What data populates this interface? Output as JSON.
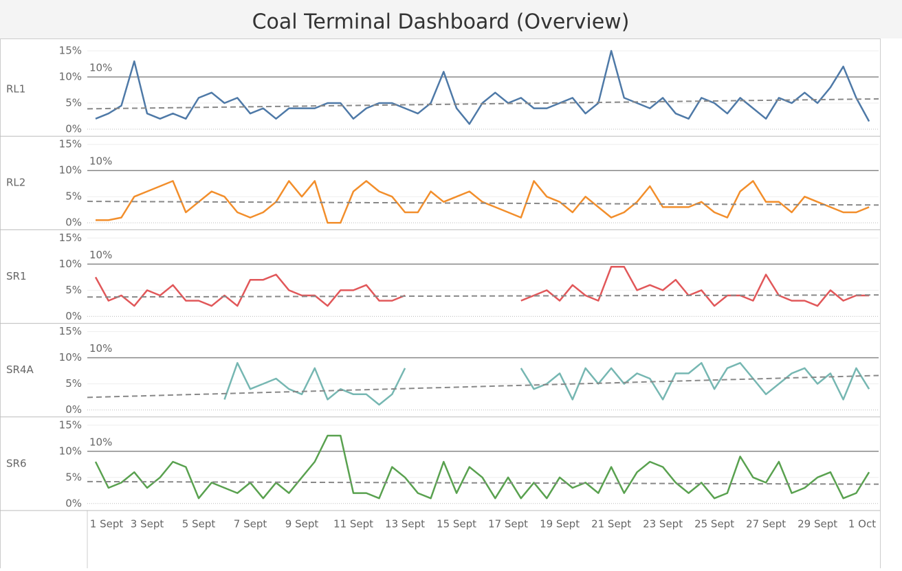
{
  "chart_data": {
    "type": "line",
    "title": "Coal Terminal Dashboard (Overview)",
    "x": [
      1,
      1.5,
      2,
      2.5,
      3,
      3.5,
      4,
      4.5,
      5,
      5.5,
      6,
      6.5,
      7,
      7.5,
      8,
      8.5,
      9,
      9.5,
      10,
      10.5,
      11,
      11.5,
      12,
      12.5,
      13,
      13.5,
      14,
      14.5,
      15,
      15.5,
      16,
      16.5,
      17,
      17.5,
      18,
      18.5,
      19,
      19.5,
      20,
      20.5,
      21,
      21.5,
      22,
      22.5,
      23,
      23.5,
      24,
      24.5,
      25,
      25.5,
      26,
      26.5,
      27,
      27.5,
      28,
      28.5,
      29,
      29.5,
      30,
      30.5,
      31
    ],
    "xlim": [
      0.68,
      31.37
    ],
    "xticks": [
      {
        "value": 1,
        "label": "1 Sept"
      },
      {
        "value": 3,
        "label": "3 Sept"
      },
      {
        "value": 5,
        "label": "5 Sept"
      },
      {
        "value": 7,
        "label": "7 Sept"
      },
      {
        "value": 9,
        "label": "9 Sept"
      },
      {
        "value": 11,
        "label": "11 Sept"
      },
      {
        "value": 13,
        "label": "13 Sept"
      },
      {
        "value": 15,
        "label": "15 Sept"
      },
      {
        "value": 17,
        "label": "17 Sept"
      },
      {
        "value": 19,
        "label": "19 Sept"
      },
      {
        "value": 21,
        "label": "21 Sept"
      },
      {
        "value": 23,
        "label": "23 Sept"
      },
      {
        "value": 25,
        "label": "25 Sept"
      },
      {
        "value": 27,
        "label": "27 Sept"
      },
      {
        "value": 29,
        "label": "29 Sept"
      },
      {
        "value": 31,
        "label": "1 Oct"
      }
    ],
    "ylim": [
      0,
      16
    ],
    "yticks": [
      {
        "value": 0,
        "label": "0%"
      },
      {
        "value": 5,
        "label": "5%"
      },
      {
        "value": 10,
        "label": "10%"
      },
      {
        "value": 15,
        "label": "15%"
      }
    ],
    "reference_line": {
      "value": 10,
      "label": "10%"
    },
    "series": [
      {
        "name": "RL1",
        "color": "#4e79a7",
        "trend": [
          3.9,
          5.8
        ],
        "values": [
          2,
          3,
          4.5,
          13,
          3,
          2,
          3,
          2,
          6,
          7,
          5,
          6,
          3,
          4,
          2,
          4,
          4,
          4,
          5,
          5,
          2,
          4,
          5,
          5,
          4,
          3,
          5,
          11,
          4,
          1,
          5,
          7,
          5,
          6,
          4,
          4,
          5,
          6,
          3,
          5,
          15,
          6,
          5,
          4,
          6,
          3,
          2,
          6,
          5,
          3,
          6,
          4,
          2,
          6,
          5,
          7,
          5,
          8,
          12,
          6,
          1.5
        ]
      },
      {
        "name": "RL2",
        "color": "#f28e2b",
        "trend": [
          4.1,
          3.4
        ],
        "values": [
          0.5,
          0.5,
          1,
          5,
          6,
          7,
          8,
          2,
          4,
          6,
          5,
          2,
          1,
          2,
          4,
          8,
          5,
          8,
          0,
          0,
          6,
          8,
          6,
          5,
          2,
          2,
          6,
          4,
          5,
          6,
          4,
          3,
          2,
          1,
          8,
          5,
          4,
          2,
          5,
          3,
          1,
          2,
          4,
          7,
          3,
          3,
          3,
          4,
          2,
          1,
          6,
          8,
          4,
          4,
          2,
          5,
          4,
          3,
          2,
          2,
          3
        ]
      },
      {
        "name": "SR1",
        "color": "#e15759",
        "trend": [
          3.7,
          4.1
        ],
        "values": [
          7.5,
          3,
          4,
          2,
          5,
          4,
          6,
          3,
          3,
          2,
          4,
          2,
          7,
          7,
          8,
          5,
          4,
          4,
          2,
          5,
          5,
          6,
          3,
          3,
          4,
          null,
          null,
          null,
          null,
          null,
          null,
          null,
          null,
          3,
          4,
          5,
          3,
          6,
          4,
          3,
          9.5,
          9.5,
          5,
          6,
          5,
          7,
          4,
          5,
          2,
          4,
          4,
          3,
          8,
          4,
          3,
          3,
          2,
          5,
          3,
          4,
          4
        ]
      },
      {
        "name": "SR4A",
        "color": "#76b7b2",
        "trend": [
          2.4,
          6.6
        ],
        "values": [
          null,
          null,
          null,
          null,
          null,
          null,
          null,
          null,
          null,
          null,
          2,
          9,
          4,
          5,
          6,
          4,
          3,
          8,
          2,
          4,
          3,
          3,
          1,
          3,
          8,
          null,
          null,
          null,
          null,
          null,
          null,
          null,
          null,
          8,
          4,
          5,
          7,
          2,
          8,
          5,
          8,
          5,
          7,
          6,
          2,
          7,
          7,
          9,
          4,
          8,
          9,
          6,
          3,
          5,
          7,
          8,
          5,
          7,
          2,
          8,
          4
        ]
      },
      {
        "name": "SR6",
        "color": "#59a14f",
        "trend": [
          4.2,
          3.7
        ],
        "values": [
          8,
          3,
          4,
          6,
          3,
          5,
          8,
          7,
          1,
          4,
          3,
          2,
          4,
          1,
          4,
          2,
          5,
          8,
          13,
          13,
          2,
          2,
          1,
          7,
          5,
          2,
          1,
          8,
          2,
          7,
          5,
          1,
          5,
          1,
          4,
          1,
          5,
          3,
          4,
          2,
          7,
          2,
          6,
          8,
          7,
          4,
          2,
          4,
          1,
          2,
          9,
          5,
          4,
          8,
          2,
          3,
          5,
          6,
          1,
          2,
          6
        ]
      }
    ]
  }
}
